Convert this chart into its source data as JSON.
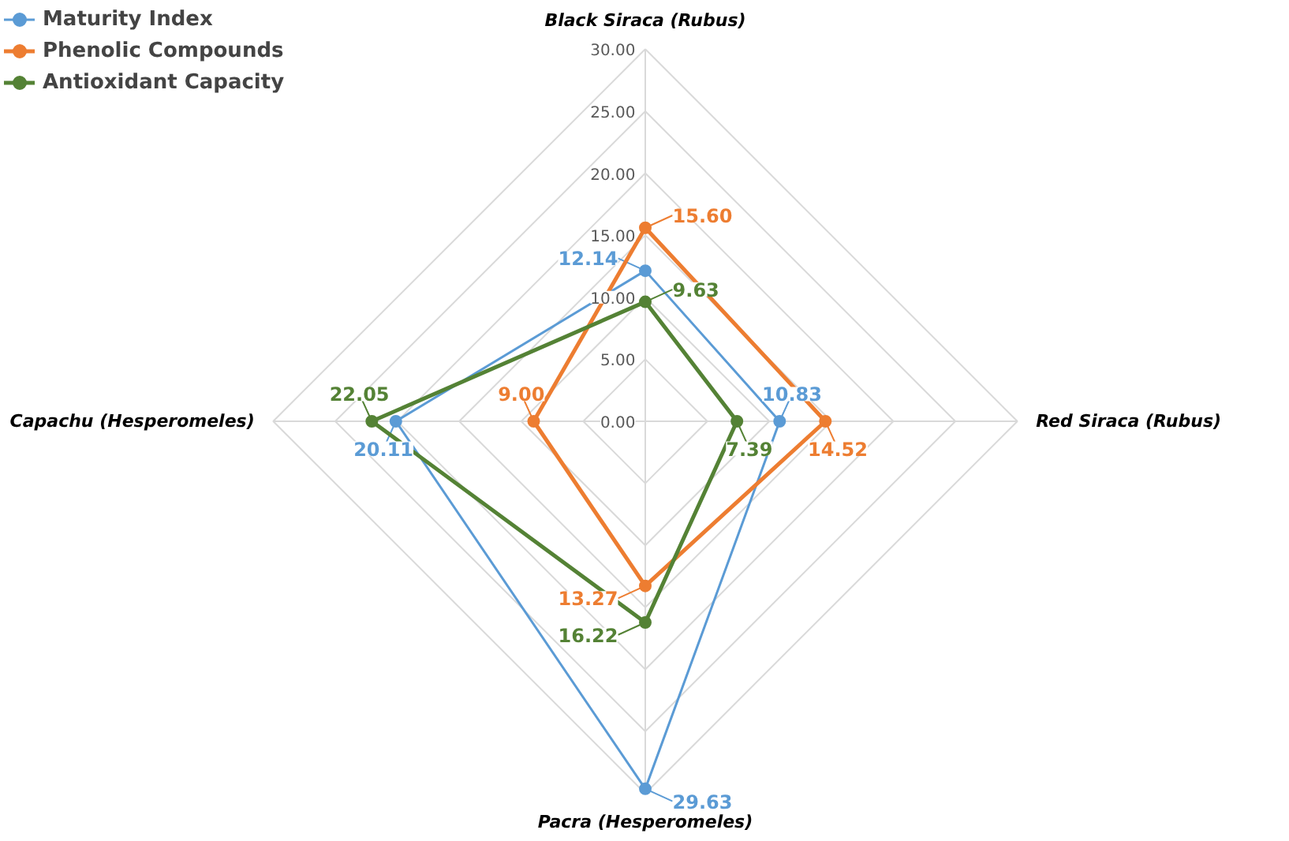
{
  "chart_data": {
    "type": "radar",
    "categories": [
      "Black Siraca (Rubus)",
      "Red Siraca (Rubus)",
      "Pacra (Hesperomeles)",
      "Capachu (Hesperomeles)"
    ],
    "series": [
      {
        "name": "Maturity Index",
        "color": "#5b9bd5",
        "values": [
          12.14,
          10.83,
          29.63,
          20.11
        ],
        "value_labels": [
          "12.14",
          "10.83",
          "29.63",
          "20.11"
        ]
      },
      {
        "name": "Phenolic Compounds",
        "color": "#ed7d31",
        "values": [
          15.6,
          14.52,
          13.27,
          9.0
        ],
        "value_labels": [
          "15.60",
          "14.52",
          "13.27",
          "9.00"
        ]
      },
      {
        "name": "Antioxidant Capacity",
        "color": "#548235",
        "values": [
          9.63,
          7.39,
          16.22,
          22.05
        ],
        "value_labels": [
          "9.63",
          "7.39",
          "16.22",
          "22.05"
        ]
      }
    ],
    "ylim": [
      0,
      30
    ],
    "yticks": [
      {
        "value": 0,
        "label": "0.00"
      },
      {
        "value": 5,
        "label": "5.00"
      },
      {
        "value": 10,
        "label": "10.00"
      },
      {
        "value": 15,
        "label": "15.00"
      },
      {
        "value": 20,
        "label": "20.00"
      },
      {
        "value": 25,
        "label": "25.00"
      },
      {
        "value": 30,
        "label": "30.00"
      }
    ],
    "grid": true,
    "legend": "top left",
    "marker": "circle",
    "line_style": "solid"
  }
}
